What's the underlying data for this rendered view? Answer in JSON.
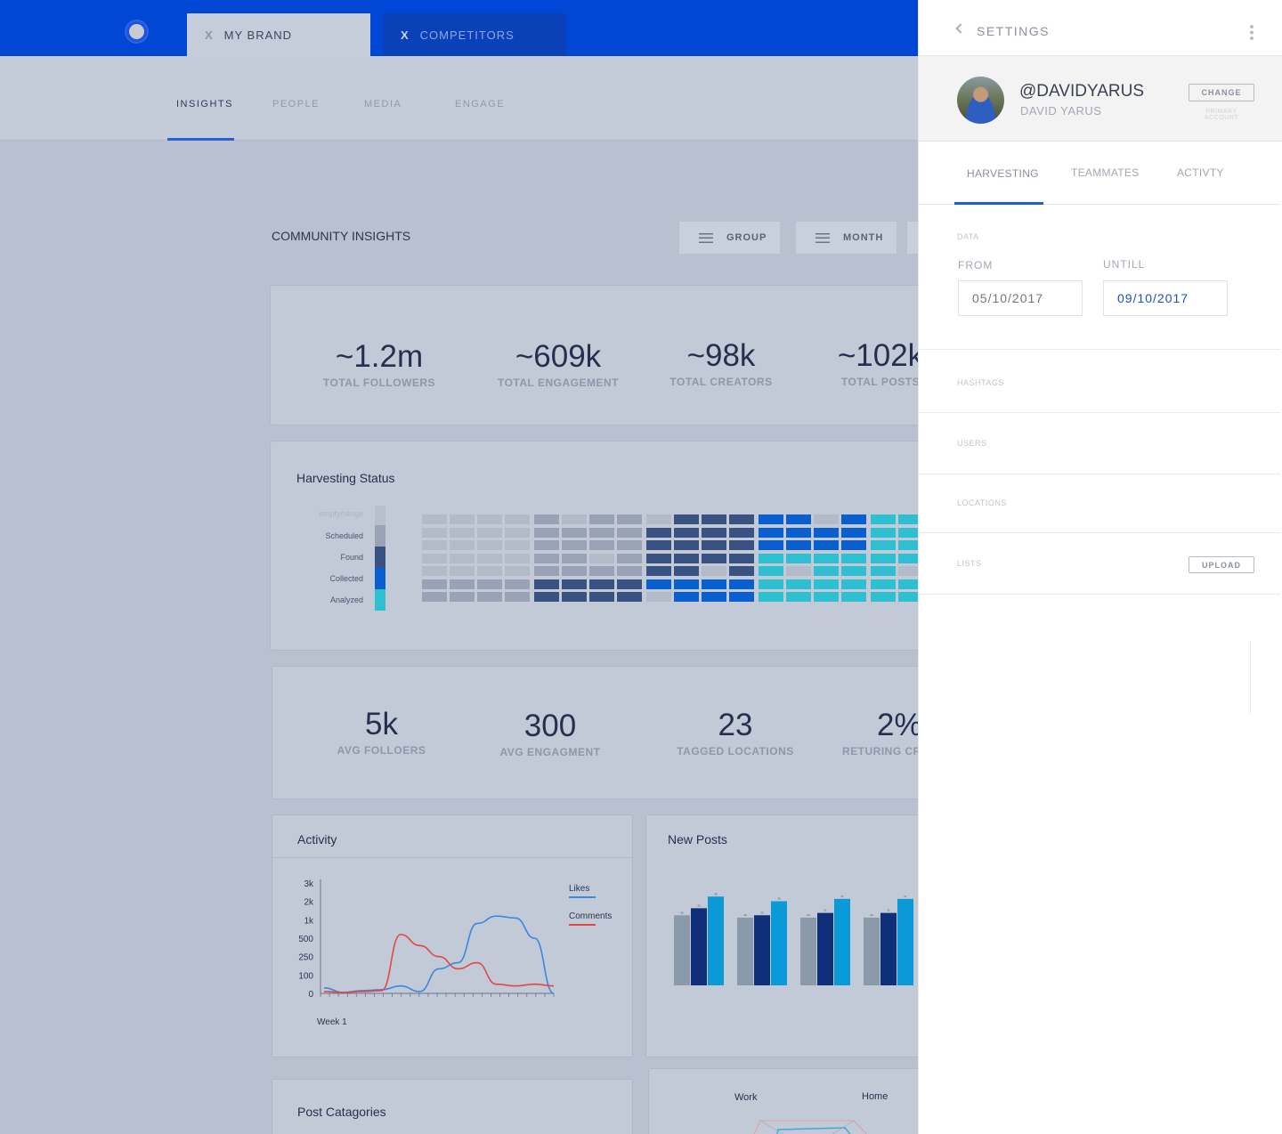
{
  "topbar": {
    "tabs": [
      {
        "close": "X",
        "label": "MY BRAND"
      },
      {
        "close": "X",
        "label": "COMPETITORS"
      }
    ]
  },
  "nav": {
    "items": [
      "INSIGHTS",
      "PEOPLE",
      "MEDIA",
      "ENGAGE"
    ],
    "active": "INSIGHTS"
  },
  "main": {
    "title": "COMMUNITY INSIGHTS",
    "filters": [
      "GROUP",
      "MONTH"
    ],
    "totals": [
      {
        "value": "~1.2m",
        "label": "TOTAL FOLLOWERS"
      },
      {
        "value": "~609k",
        "label": "TOTAL ENGAGEMENT"
      },
      {
        "value": "~98k",
        "label": "TOTAL CREATORS"
      },
      {
        "value": "~102k",
        "label": "TOTAL POSTS"
      }
    ],
    "harvesting": {
      "title": "Harvesting Status",
      "legend": [
        "empty/range",
        "Scheduled",
        "Found",
        "Collected",
        "Analyzed"
      ]
    },
    "averages": [
      {
        "value": "5k",
        "label": "AVG FOLLOERS"
      },
      {
        "value": "300",
        "label": "AVG ENGAGMENT"
      },
      {
        "value": "23",
        "label": "TAGGED LOCATIONS"
      },
      {
        "value": "2%",
        "label": "RETURING CRE"
      }
    ],
    "activity_title": "Activity",
    "new_posts_title": "New Posts",
    "post_categories_title": "Post Catagories",
    "radar_labels": [
      "Work",
      "Home"
    ]
  },
  "chart_data": [
    {
      "type": "line",
      "title": "Activity",
      "xlabel": "Week 1",
      "y_ticks": [
        "3k",
        "2k",
        "1k",
        "500",
        "250",
        "100",
        "0"
      ],
      "series": [
        {
          "name": "Likes",
          "color": "#3a86e0",
          "values": [
            30,
            5,
            15,
            20,
            40,
            10,
            150,
            200,
            900,
            1200,
            1100,
            500,
            0
          ]
        },
        {
          "name": "Comments",
          "color": "#e04848",
          "values": [
            10,
            5,
            10,
            15,
            600,
            400,
            250,
            150,
            200,
            50,
            40,
            50,
            40
          ]
        }
      ],
      "legend": "right"
    },
    {
      "type": "bar",
      "title": "New Posts",
      "colors": [
        "#8a9aab",
        "#0f2f7a",
        "#0b9ad8"
      ],
      "groups": [
        [
          30,
          33,
          38
        ],
        [
          29,
          30,
          36
        ],
        [
          29,
          31,
          37
        ],
        [
          29,
          31,
          37
        ]
      ],
      "ylim": [
        0,
        40
      ]
    },
    {
      "type": "heatmap",
      "title": "Harvesting Status",
      "weeks": 18,
      "rows": 7,
      "colors": [
        "#b4bbc8",
        "#9aa3b5",
        "#3a5282",
        "#0a5fd0",
        "#2ec0d0"
      ]
    }
  ],
  "panel": {
    "title": "SETTINGS",
    "handle": "@DAVIDYARUS",
    "name": "DAVID YARUS",
    "change": "CHANGE",
    "primary": "PRIMARY ACCOUNT",
    "tabs": [
      "HARVESTING",
      "TEAMMATES",
      "ACTIVTY"
    ],
    "data_label": "DATA",
    "from_label": "FROM",
    "until_label": "UNTILL",
    "from_value": "05/10/2017",
    "until_value": "09/10/2017",
    "sections": [
      "HASHTAGS",
      "USERS",
      "LOCATIONS",
      "LISTS"
    ],
    "upload": "UPLOAD"
  }
}
